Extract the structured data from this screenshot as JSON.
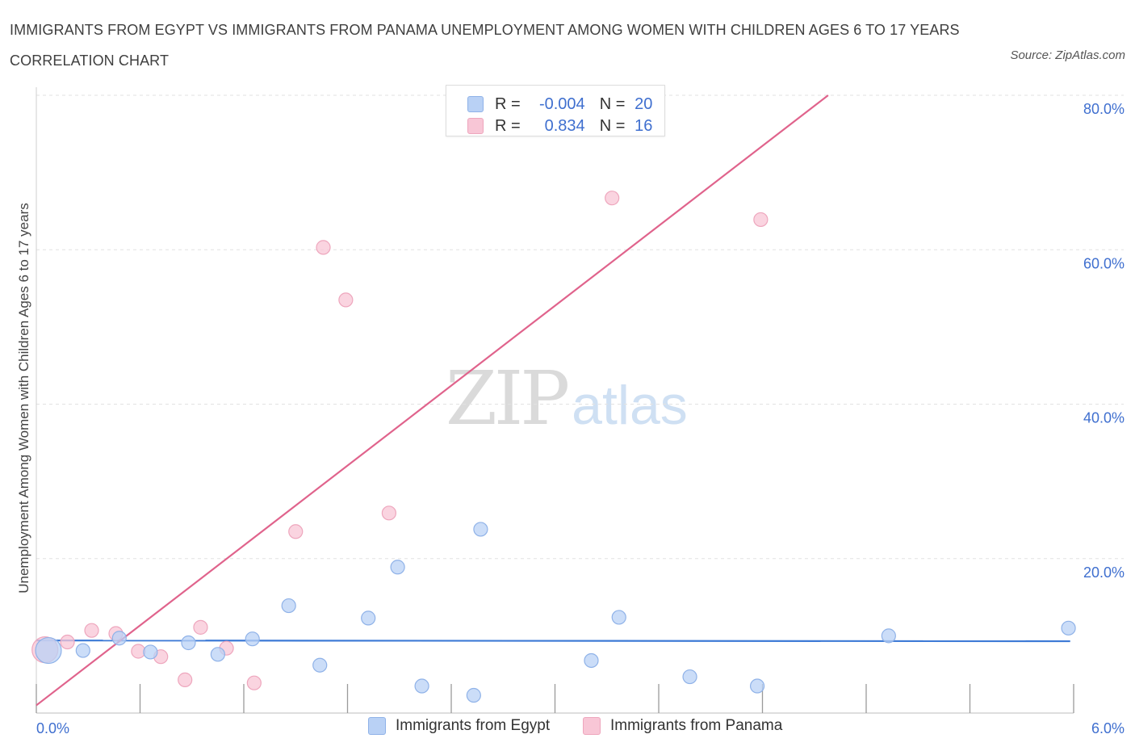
{
  "title": "IMMIGRANTS FROM EGYPT VS IMMIGRANTS FROM PANAMA UNEMPLOYMENT AMONG WOMEN WITH CHILDREN AGES 6 TO 17 YEARS CORRELATION CHART",
  "source": "Source: ZipAtlas.com",
  "watermark": {
    "zip": "ZIP",
    "atlas": "atlas"
  },
  "legend": {
    "egypt": {
      "r_label": "R =",
      "r_value": "-0.004",
      "n_label": "N =",
      "n_value": "20"
    },
    "panama": {
      "r_label": "R =",
      "r_value": "0.834",
      "n_label": "N =",
      "n_value": "16"
    }
  },
  "colors": {
    "egypt_fill": "#b9d1f5",
    "egypt_stroke": "#8fb2e8",
    "egypt_line": "#3d7ad6",
    "panama_fill": "#f8c6d6",
    "panama_stroke": "#eea6bd",
    "panama_line": "#e0638c",
    "tick_label": "#3f6fcf",
    "grid": "#e2e2e2"
  },
  "chart_data": {
    "type": "scatter",
    "title": "IMMIGRANTS FROM EGYPT VS IMMIGRANTS FROM PANAMA UNEMPLOYMENT AMONG WOMEN WITH CHILDREN AGES 6 TO 17 YEARS CORRELATION CHART",
    "xlabel": "",
    "ylabel": "Unemployment Among Women with Children Ages 6 to 17 years",
    "xlim": [
      0,
      6
    ],
    "ylim": [
      0,
      80
    ],
    "x_tick_labels": [
      "0.0%",
      "6.0%"
    ],
    "y_ticks": [
      20,
      40,
      60,
      80
    ],
    "y_tick_labels": [
      "20.0%",
      "40.0%",
      "60.0%",
      "80.0%"
    ],
    "grid": true,
    "legend_position": "top-center",
    "series": [
      {
        "name": "Immigrants from Egypt",
        "points": [
          {
            "x": 0.07,
            "y": 8.1,
            "size": "large"
          },
          {
            "x": 0.27,
            "y": 8.1
          },
          {
            "x": 0.48,
            "y": 9.7
          },
          {
            "x": 0.66,
            "y": 7.9
          },
          {
            "x": 0.88,
            "y": 9.1
          },
          {
            "x": 1.05,
            "y": 7.6
          },
          {
            "x": 1.25,
            "y": 9.6
          },
          {
            "x": 1.46,
            "y": 13.9
          },
          {
            "x": 1.64,
            "y": 6.2
          },
          {
            "x": 1.92,
            "y": 12.3
          },
          {
            "x": 2.09,
            "y": 18.9
          },
          {
            "x": 2.23,
            "y": 3.5
          },
          {
            "x": 2.53,
            "y": 2.3
          },
          {
            "x": 2.57,
            "y": 23.8
          },
          {
            "x": 3.21,
            "y": 6.8
          },
          {
            "x": 3.37,
            "y": 12.4
          },
          {
            "x": 3.78,
            "y": 4.7
          },
          {
            "x": 4.17,
            "y": 3.5
          },
          {
            "x": 4.93,
            "y": 10.0
          },
          {
            "x": 5.97,
            "y": 11.0
          }
        ],
        "trend": {
          "x": [
            0,
            5.98
          ],
          "y": [
            9.4,
            9.3
          ]
        }
      },
      {
        "name": "Immigrants from Panama",
        "points": [
          {
            "x": 0.05,
            "y": 8.2,
            "size": "large"
          },
          {
            "x": 0.18,
            "y": 9.2
          },
          {
            "x": 0.32,
            "y": 10.7
          },
          {
            "x": 0.46,
            "y": 10.3
          },
          {
            "x": 0.59,
            "y": 8.0
          },
          {
            "x": 0.72,
            "y": 7.3
          },
          {
            "x": 0.86,
            "y": 4.3
          },
          {
            "x": 0.95,
            "y": 11.1
          },
          {
            "x": 1.1,
            "y": 8.4
          },
          {
            "x": 1.26,
            "y": 3.9
          },
          {
            "x": 1.5,
            "y": 23.5
          },
          {
            "x": 1.66,
            "y": 60.3
          },
          {
            "x": 1.79,
            "y": 53.5
          },
          {
            "x": 2.04,
            "y": 25.9
          },
          {
            "x": 3.33,
            "y": 66.7
          },
          {
            "x": 4.19,
            "y": 63.9
          }
        ],
        "trend": {
          "x": [
            0,
            4.58
          ],
          "y": [
            1.0,
            80.0
          ]
        }
      }
    ]
  },
  "bottom_legend": {
    "egypt": "Immigrants from Egypt",
    "panama": "Immigrants from Panama"
  }
}
